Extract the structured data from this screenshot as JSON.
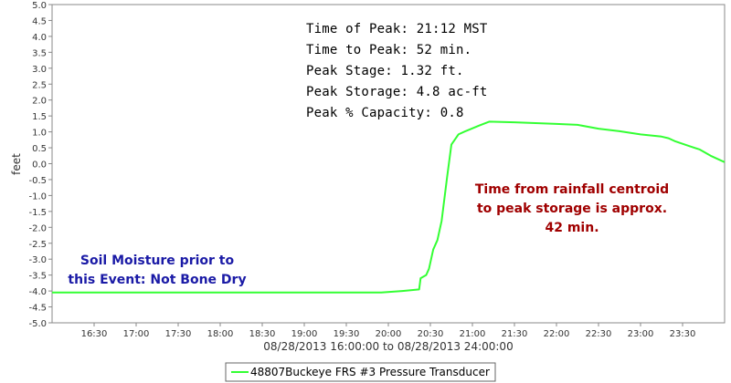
{
  "chart_data": {
    "type": "line",
    "title": "",
    "xlabel": "08/28/2013 16:00:00 to 08/28/2013 24:00:00",
    "ylabel": "feet",
    "ylim": [
      -5.0,
      5.0
    ],
    "y_tick_step": 0.5,
    "y_tick_labels": [
      "5.0",
      "4.5",
      "4.0",
      "3.5",
      "3.0",
      "2.5",
      "2.0",
      "1.5",
      "1.0",
      "0.5",
      "0.0",
      "-0.5",
      "-1.0",
      "-1.5",
      "-2.0",
      "-2.5",
      "-3.0",
      "-3.5",
      "-4.0",
      "-4.5",
      "-5.0"
    ],
    "xlim": [
      "16:00",
      "24:00"
    ],
    "x_tick_labels": [
      "16:30",
      "17:00",
      "17:30",
      "18:00",
      "18:30",
      "19:00",
      "19:30",
      "20:00",
      "20:30",
      "21:00",
      "21:30",
      "22:00",
      "22:30",
      "23:00",
      "23:30"
    ],
    "grid": false,
    "legend_position": "bottom-center",
    "series": [
      {
        "name": "48807Buckeye FRS #3 Pressure Transducer",
        "color": "#33ff33",
        "x": [
          "16:00",
          "19:55",
          "20:10",
          "20:22",
          "20:23",
          "20:27",
          "20:29",
          "20:32",
          "20:35",
          "20:38",
          "20:42",
          "20:45",
          "20:50",
          "20:55",
          "21:05",
          "21:12",
          "21:30",
          "22:00",
          "22:15",
          "22:30",
          "22:45",
          "23:00",
          "23:15",
          "23:20",
          "23:25",
          "23:35",
          "23:42",
          "23:50",
          "24:00"
        ],
        "y": [
          -4.05,
          -4.05,
          -4.0,
          -3.95,
          -3.6,
          -3.5,
          -3.3,
          -2.7,
          -2.4,
          -1.8,
          -0.4,
          0.6,
          0.92,
          1.02,
          1.2,
          1.32,
          1.3,
          1.25,
          1.22,
          1.1,
          1.02,
          0.92,
          0.85,
          0.8,
          0.7,
          0.55,
          0.45,
          0.25,
          0.05
        ]
      }
    ],
    "annotations": {
      "info_lines": [
        "Time of Peak: 21:12 MST",
        "Time to Peak: 52 min.",
        "Peak Stage: 1.32 ft.",
        "Peak Storage: 4.8 ac-ft",
        "Peak % Capacity: 0.8"
      ],
      "red_lines": [
        "Time from rainfall centroid",
        "to peak storage is approx.",
        "42 min."
      ],
      "blue_lines": [
        "Soil Moisture prior to",
        "this Event: Not Bone Dry"
      ],
      "colors": {
        "red": "#a00000",
        "blue": "#1a1aa6"
      }
    }
  }
}
